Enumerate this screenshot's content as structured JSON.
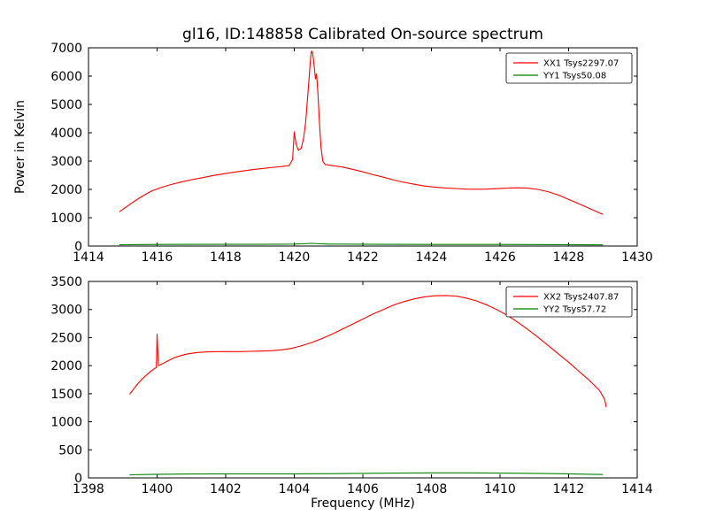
{
  "title": "gl16, ID:148858 Calibrated On-source spectrum",
  "colors": {
    "xx": "#ff0000",
    "yy": "#008000",
    "axis": "#000000",
    "background": "#ffffff"
  },
  "chart_data": [
    {
      "type": "line",
      "title": "gl16, ID:148858 Calibrated On-source spectrum",
      "xlabel": "",
      "ylabel": "Power in Kelvin",
      "xlim": [
        1414,
        1430
      ],
      "ylim": [
        0,
        7000
      ],
      "xticks": [
        1414,
        1416,
        1418,
        1420,
        1422,
        1424,
        1426,
        1428,
        1430
      ],
      "yticks": [
        0,
        1000,
        2000,
        3000,
        4000,
        5000,
        6000,
        7000
      ],
      "grid": false,
      "legend_position": "upper right",
      "legend": [
        "XX1 Tsys2297.07",
        "YY1 Tsys50.08"
      ],
      "series": [
        {
          "name": "XX1 Tsys2297.07",
          "color": "#ff0000",
          "points": [
            [
              1414.9,
              1210
            ],
            [
              1415.1,
              1380
            ],
            [
              1415.35,
              1590
            ],
            [
              1415.6,
              1780
            ],
            [
              1415.85,
              1950
            ],
            [
              1416.1,
              2060
            ],
            [
              1416.4,
              2170
            ],
            [
              1416.7,
              2260
            ],
            [
              1417.0,
              2340
            ],
            [
              1417.3,
              2410
            ],
            [
              1417.6,
              2480
            ],
            [
              1417.9,
              2540
            ],
            [
              1418.2,
              2600
            ],
            [
              1418.5,
              2650
            ],
            [
              1418.8,
              2700
            ],
            [
              1419.1,
              2740
            ],
            [
              1419.4,
              2780
            ],
            [
              1419.65,
              2810
            ],
            [
              1419.85,
              2840
            ],
            [
              1419.95,
              3050
            ],
            [
              1420.0,
              4030
            ],
            [
              1420.05,
              3620
            ],
            [
              1420.12,
              3380
            ],
            [
              1420.2,
              3450
            ],
            [
              1420.27,
              3800
            ],
            [
              1420.33,
              4350
            ],
            [
              1420.38,
              5100
            ],
            [
              1420.43,
              5900
            ],
            [
              1420.47,
              6550
            ],
            [
              1420.5,
              6880
            ],
            [
              1420.54,
              6800
            ],
            [
              1420.58,
              6350
            ],
            [
              1420.62,
              5900
            ],
            [
              1420.65,
              6080
            ],
            [
              1420.69,
              5400
            ],
            [
              1420.73,
              4450
            ],
            [
              1420.78,
              3500
            ],
            [
              1420.83,
              3000
            ],
            [
              1420.9,
              2880
            ],
            [
              1421.1,
              2840
            ],
            [
              1421.4,
              2790
            ],
            [
              1421.7,
              2710
            ],
            [
              1422.0,
              2620
            ],
            [
              1422.3,
              2520
            ],
            [
              1422.6,
              2430
            ],
            [
              1422.9,
              2330
            ],
            [
              1423.2,
              2250
            ],
            [
              1423.5,
              2180
            ],
            [
              1423.8,
              2120
            ],
            [
              1424.1,
              2080
            ],
            [
              1424.4,
              2050
            ],
            [
              1424.7,
              2030
            ],
            [
              1425.0,
              2010
            ],
            [
              1425.3,
              2005
            ],
            [
              1425.6,
              2010
            ],
            [
              1425.9,
              2025
            ],
            [
              1426.2,
              2045
            ],
            [
              1426.5,
              2055
            ],
            [
              1426.8,
              2045
            ],
            [
              1427.1,
              2000
            ],
            [
              1427.4,
              1920
            ],
            [
              1427.7,
              1800
            ],
            [
              1428.0,
              1650
            ],
            [
              1428.3,
              1490
            ],
            [
              1428.6,
              1330
            ],
            [
              1428.9,
              1170
            ],
            [
              1429.0,
              1120
            ]
          ]
        },
        {
          "name": "YY1 Tsys50.08",
          "color": "#008000",
          "points": [
            [
              1414.9,
              45
            ],
            [
              1416.0,
              55
            ],
            [
              1417.5,
              60
            ],
            [
              1419.0,
              60
            ],
            [
              1420.0,
              70
            ],
            [
              1420.5,
              95
            ],
            [
              1421.0,
              70
            ],
            [
              1422.5,
              60
            ],
            [
              1424.0,
              55
            ],
            [
              1426.0,
              55
            ],
            [
              1427.5,
              50
            ],
            [
              1429.0,
              40
            ]
          ]
        }
      ]
    },
    {
      "type": "line",
      "title": "",
      "xlabel": "Frequency (MHz)",
      "ylabel": "",
      "xlim": [
        1398,
        1414
      ],
      "ylim": [
        0,
        3500
      ],
      "xticks": [
        1398,
        1400,
        1402,
        1404,
        1406,
        1408,
        1410,
        1412,
        1414
      ],
      "yticks": [
        0,
        500,
        1000,
        1500,
        2000,
        2500,
        3000,
        3500
      ],
      "grid": false,
      "legend_position": "upper right",
      "legend": [
        "XX2 Tsys2407.87",
        "YY2 Tsys57.72"
      ],
      "series": [
        {
          "name": "XX2 Tsys2407.87",
          "color": "#ff0000",
          "points": [
            [
              1399.2,
              1490
            ],
            [
              1399.35,
              1610
            ],
            [
              1399.5,
              1720
            ],
            [
              1399.65,
              1810
            ],
            [
              1399.8,
              1890
            ],
            [
              1399.92,
              1945
            ],
            [
              1399.98,
              1965
            ],
            [
              1400.0,
              2560
            ],
            [
              1400.04,
              2000
            ],
            [
              1400.15,
              2030
            ],
            [
              1400.3,
              2080
            ],
            [
              1400.5,
              2140
            ],
            [
              1400.7,
              2180
            ],
            [
              1400.9,
              2210
            ],
            [
              1401.2,
              2235
            ],
            [
              1401.5,
              2245
            ],
            [
              1401.8,
              2250
            ],
            [
              1402.1,
              2250
            ],
            [
              1402.4,
              2250
            ],
            [
              1402.7,
              2255
            ],
            [
              1403.0,
              2260
            ],
            [
              1403.3,
              2265
            ],
            [
              1403.6,
              2280
            ],
            [
              1403.9,
              2305
            ],
            [
              1404.2,
              2350
            ],
            [
              1404.5,
              2410
            ],
            [
              1404.8,
              2480
            ],
            [
              1405.1,
              2560
            ],
            [
              1405.4,
              2650
            ],
            [
              1405.7,
              2740
            ],
            [
              1406.0,
              2830
            ],
            [
              1406.3,
              2920
            ],
            [
              1406.6,
              3000
            ],
            [
              1406.9,
              3080
            ],
            [
              1407.2,
              3140
            ],
            [
              1407.5,
              3190
            ],
            [
              1407.8,
              3225
            ],
            [
              1408.1,
              3245
            ],
            [
              1408.4,
              3250
            ],
            [
              1408.7,
              3240
            ],
            [
              1409.0,
              3205
            ],
            [
              1409.3,
              3155
            ],
            [
              1409.6,
              3085
            ],
            [
              1409.9,
              3000
            ],
            [
              1410.2,
              2900
            ],
            [
              1410.5,
              2780
            ],
            [
              1410.8,
              2650
            ],
            [
              1411.1,
              2510
            ],
            [
              1411.4,
              2360
            ],
            [
              1411.7,
              2210
            ],
            [
              1412.0,
              2060
            ],
            [
              1412.3,
              1900
            ],
            [
              1412.6,
              1740
            ],
            [
              1412.9,
              1560
            ],
            [
              1413.05,
              1400
            ],
            [
              1413.1,
              1260
            ]
          ]
        },
        {
          "name": "YY2 Tsys57.72",
          "color": "#008000",
          "points": [
            [
              1399.2,
              55
            ],
            [
              1400.0,
              65
            ],
            [
              1401.0,
              70
            ],
            [
              1402.5,
              72
            ],
            [
              1404.0,
              72
            ],
            [
              1405.5,
              78
            ],
            [
              1407.0,
              85
            ],
            [
              1408.0,
              90
            ],
            [
              1409.0,
              90
            ],
            [
              1410.0,
              85
            ],
            [
              1411.0,
              80
            ],
            [
              1412.0,
              72
            ],
            [
              1413.0,
              60
            ]
          ]
        }
      ]
    }
  ]
}
